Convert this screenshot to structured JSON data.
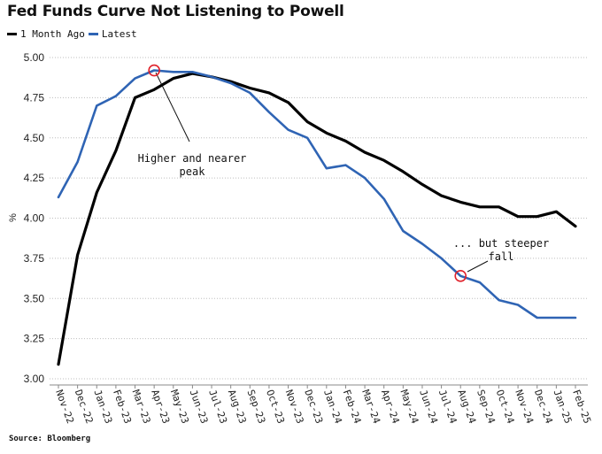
{
  "chart_data": {
    "type": "line",
    "title": "Fed Funds Curve Not Listening to Powell",
    "ylabel": "%",
    "xlabel": "",
    "ylim": [
      3.0,
      5.0
    ],
    "yticks": [
      "5.00",
      "4.75",
      "4.50",
      "4.25",
      "4.00",
      "3.75",
      "3.50",
      "3.25",
      "3.00"
    ],
    "grid": true,
    "categories": [
      "Nov-22",
      "Dec-22",
      "Jan-23",
      "Feb-23",
      "Mar-23",
      "Apr-23",
      "May-23",
      "Jun-23",
      "Jul-23",
      "Aug-23",
      "Sep-23",
      "Oct-23",
      "Nov-23",
      "Dec-23",
      "Jan-24",
      "Feb-24",
      "Mar-24",
      "Apr-24",
      "May-24",
      "Jun-24",
      "Jul-24",
      "Aug-24",
      "Sep-24",
      "Oct-24",
      "Nov-24",
      "Dec-24",
      "Jan-25",
      "Feb-25"
    ],
    "series": [
      {
        "name": "1 Month Ago",
        "color": "#000000",
        "values": [
          3.09,
          3.77,
          4.16,
          4.42,
          4.75,
          4.8,
          4.87,
          4.9,
          4.88,
          4.85,
          4.81,
          4.78,
          4.72,
          4.6,
          4.53,
          4.48,
          4.41,
          4.36,
          4.29,
          4.21,
          4.14,
          4.1,
          4.07,
          4.07,
          4.01,
          4.01,
          4.04,
          3.95
        ]
      },
      {
        "name": "Latest",
        "color": "#2f64b4",
        "values": [
          4.13,
          4.35,
          4.7,
          4.76,
          4.87,
          4.92,
          4.91,
          4.91,
          4.88,
          4.84,
          4.78,
          4.66,
          4.55,
          4.5,
          4.31,
          4.33,
          4.25,
          4.12,
          3.92,
          3.84,
          3.75,
          3.64,
          3.6,
          3.49,
          3.46,
          3.38,
          3.38,
          3.38
        ]
      }
    ],
    "annotations": [
      {
        "text_lines": [
          "Higher and nearer",
          "peak"
        ],
        "series": "Latest",
        "category": "Apr-23",
        "value": 4.92
      },
      {
        "text_lines": [
          "... but steeper",
          "fall"
        ],
        "series": "Latest",
        "category": "Aug-24",
        "value": 3.64
      }
    ],
    "source": "Source: Bloomberg"
  }
}
